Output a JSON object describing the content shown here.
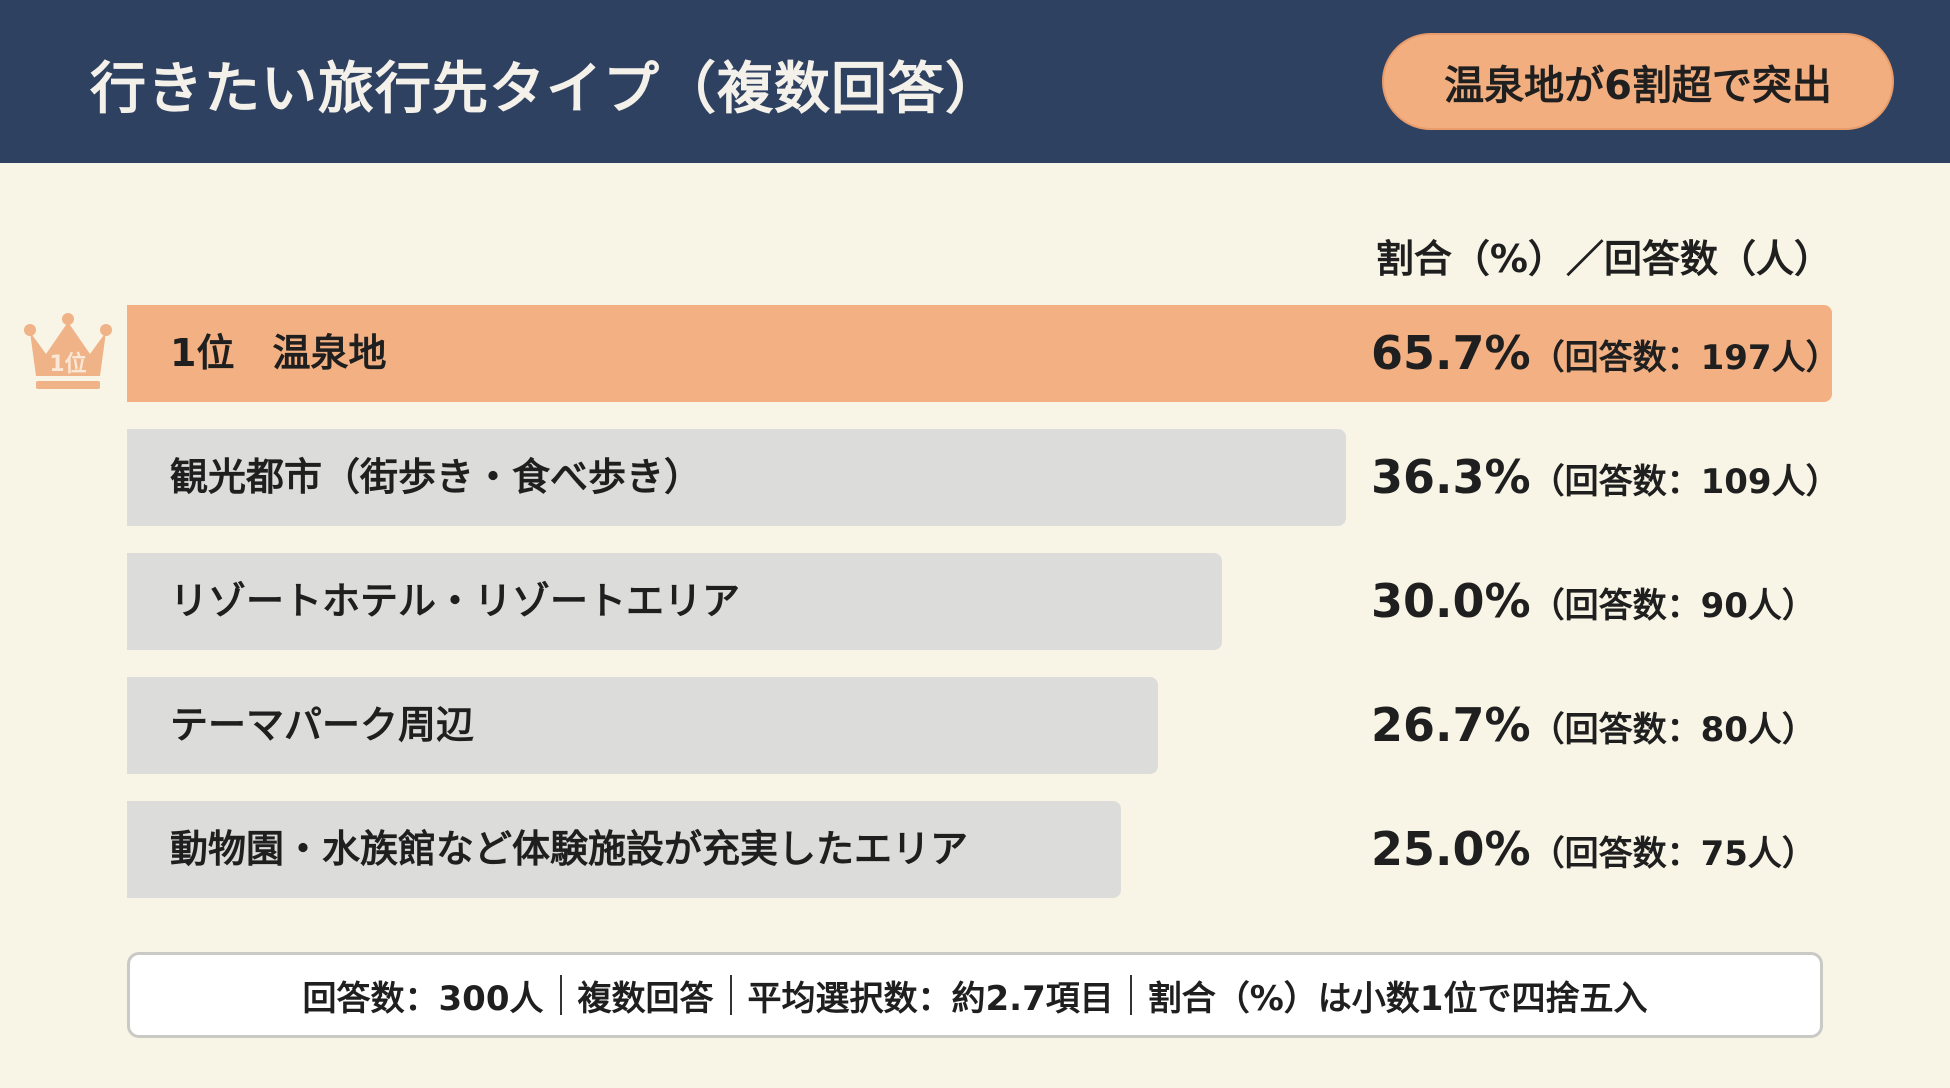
{
  "header": {
    "title": "行きたい旅行先タイプ（複数回答）",
    "badge": "温泉地が6割超で突出"
  },
  "chart_data": {
    "type": "bar",
    "orientation": "horizontal",
    "title": "行きたい旅行先タイプ（複数回答）",
    "column_header": "割合（%）／回答数（人）",
    "categories": [
      "1位　温泉地",
      "観光都市（街歩き・食べ歩き）",
      "リゾートホテル・リゾートエリア",
      "テーマパーク周辺",
      "動物園・水族館など体験施設が充実したエリア"
    ],
    "values": [
      65.7,
      36.3,
      30.0,
      26.7,
      25.0
    ],
    "value_labels": [
      "65.7%",
      "36.3%",
      "30.0%",
      "26.7%",
      "25.0%"
    ],
    "count_labels": [
      "（回答数：197人）",
      "（回答数：109人）",
      "（回答数：90人）",
      "（回答数：80人）",
      "（回答数：75人）"
    ],
    "counts": [
      197,
      109,
      90,
      80,
      75
    ],
    "unit": "%",
    "highlight_index": 0,
    "colors": {
      "highlight": "#f3b083",
      "default": "#dcdcdb",
      "header": "#2f4161",
      "background": "#f8f5e6"
    }
  },
  "rank_badge": {
    "icon": "crown-icon",
    "label": "1位",
    "color": "#f0b287"
  },
  "footer": {
    "items": [
      "回答数：300人",
      "複数回答",
      "平均選択数：約2.7項目",
      "割合（%）は小数1位で四捨五入"
    ]
  }
}
